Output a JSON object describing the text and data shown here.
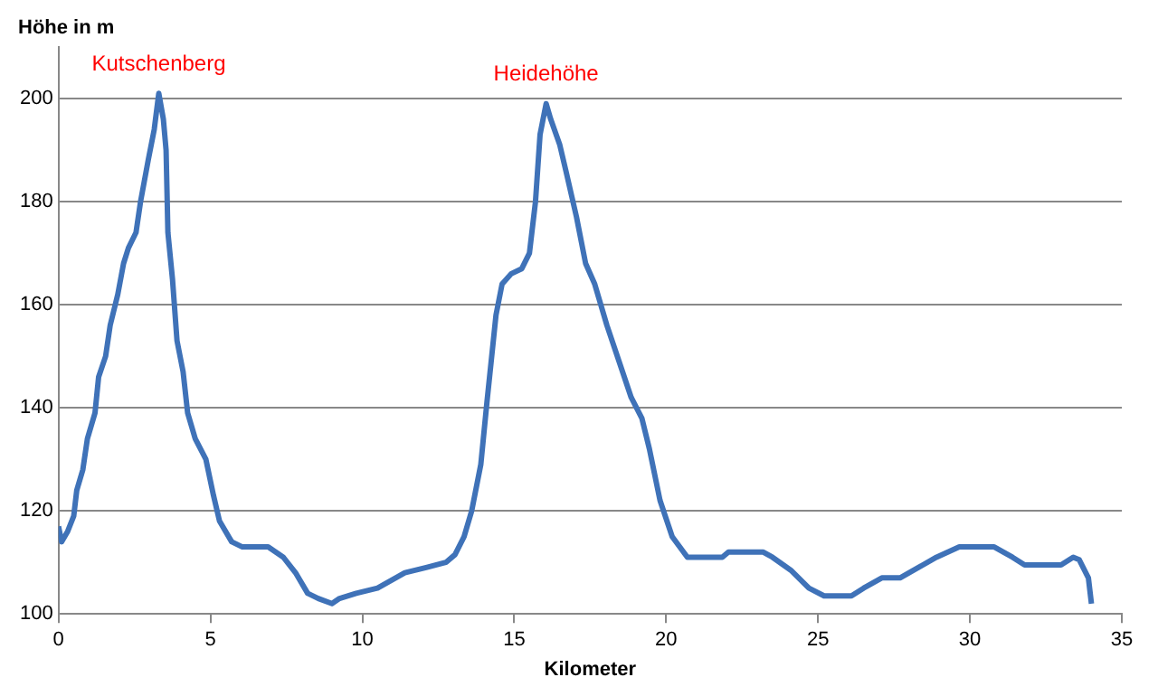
{
  "chart_data": {
    "type": "line",
    "ylabel": "Höhe in m",
    "xlabel": "Kilometer",
    "xlim": [
      0,
      35
    ],
    "xticks": [
      0,
      5,
      10,
      15,
      20,
      25,
      30,
      35
    ],
    "ylim": [
      100,
      210
    ],
    "yticks": [
      100,
      120,
      140,
      160,
      180,
      200
    ],
    "grid": "y",
    "marker": "none",
    "line_style": "solid",
    "annotations": [
      {
        "text": "Kutschenberg",
        "x": 3.3,
        "y": 201
      },
      {
        "text": "Heidehöhe",
        "x": 16.05,
        "y": 199
      }
    ],
    "series": [
      {
        "color": "#3f72b8",
        "x": [
          0,
          0.1,
          0.3,
          0.5,
          0.6,
          0.8,
          0.95,
          1.2,
          1.32,
          1.55,
          1.7,
          1.95,
          2.14,
          2.3,
          2.55,
          2.7,
          2.95,
          3.15,
          3.3,
          3.45,
          3.54,
          3.6,
          3.75,
          3.9,
          4.1,
          4.25,
          4.5,
          4.85,
          5.1,
          5.3,
          5.7,
          6.05,
          6.9,
          7.4,
          7.8,
          8.2,
          8.55,
          9,
          9.25,
          9.8,
          10.5,
          11.4,
          12.1,
          12.75,
          13.05,
          13.35,
          13.6,
          13.9,
          14.1,
          14.4,
          14.6,
          14.9,
          15.25,
          15.5,
          15.7,
          15.85,
          16.05,
          16.2,
          16.5,
          16.7,
          17.05,
          17.35,
          17.65,
          18.05,
          18.45,
          18.85,
          19.2,
          19.45,
          19.8,
          20.2,
          20.7,
          21.85,
          22.05,
          23.2,
          23.5,
          24.1,
          24.7,
          25.2,
          26.1,
          26.5,
          27.1,
          27.7,
          28.3,
          28.9,
          29.65,
          30.8,
          31.4,
          31.8,
          33,
          33.4,
          33.6,
          33.9,
          34
        ],
        "values": [
          117,
          114,
          116,
          119,
          124,
          128,
          134,
          139,
          146,
          150,
          156,
          162,
          168,
          171,
          174,
          180,
          188,
          194,
          201,
          196,
          190,
          174,
          165,
          153,
          147,
          139,
          134,
          130,
          123,
          118,
          114,
          113,
          113,
          111,
          108,
          104,
          103,
          102,
          103,
          104,
          105,
          108,
          109,
          110,
          111.5,
          115,
          120,
          129,
          141,
          158,
          164,
          166,
          167,
          170,
          180,
          193,
          199,
          196,
          191,
          186,
          177,
          168,
          164,
          156,
          149,
          142,
          138,
          132,
          122,
          115,
          111,
          111,
          112,
          112,
          111,
          108.5,
          105,
          103.5,
          103.5,
          105,
          107,
          107,
          109,
          111,
          113,
          113,
          111,
          109.5,
          109.5,
          111,
          110.5,
          107,
          102
        ]
      }
    ]
  }
}
